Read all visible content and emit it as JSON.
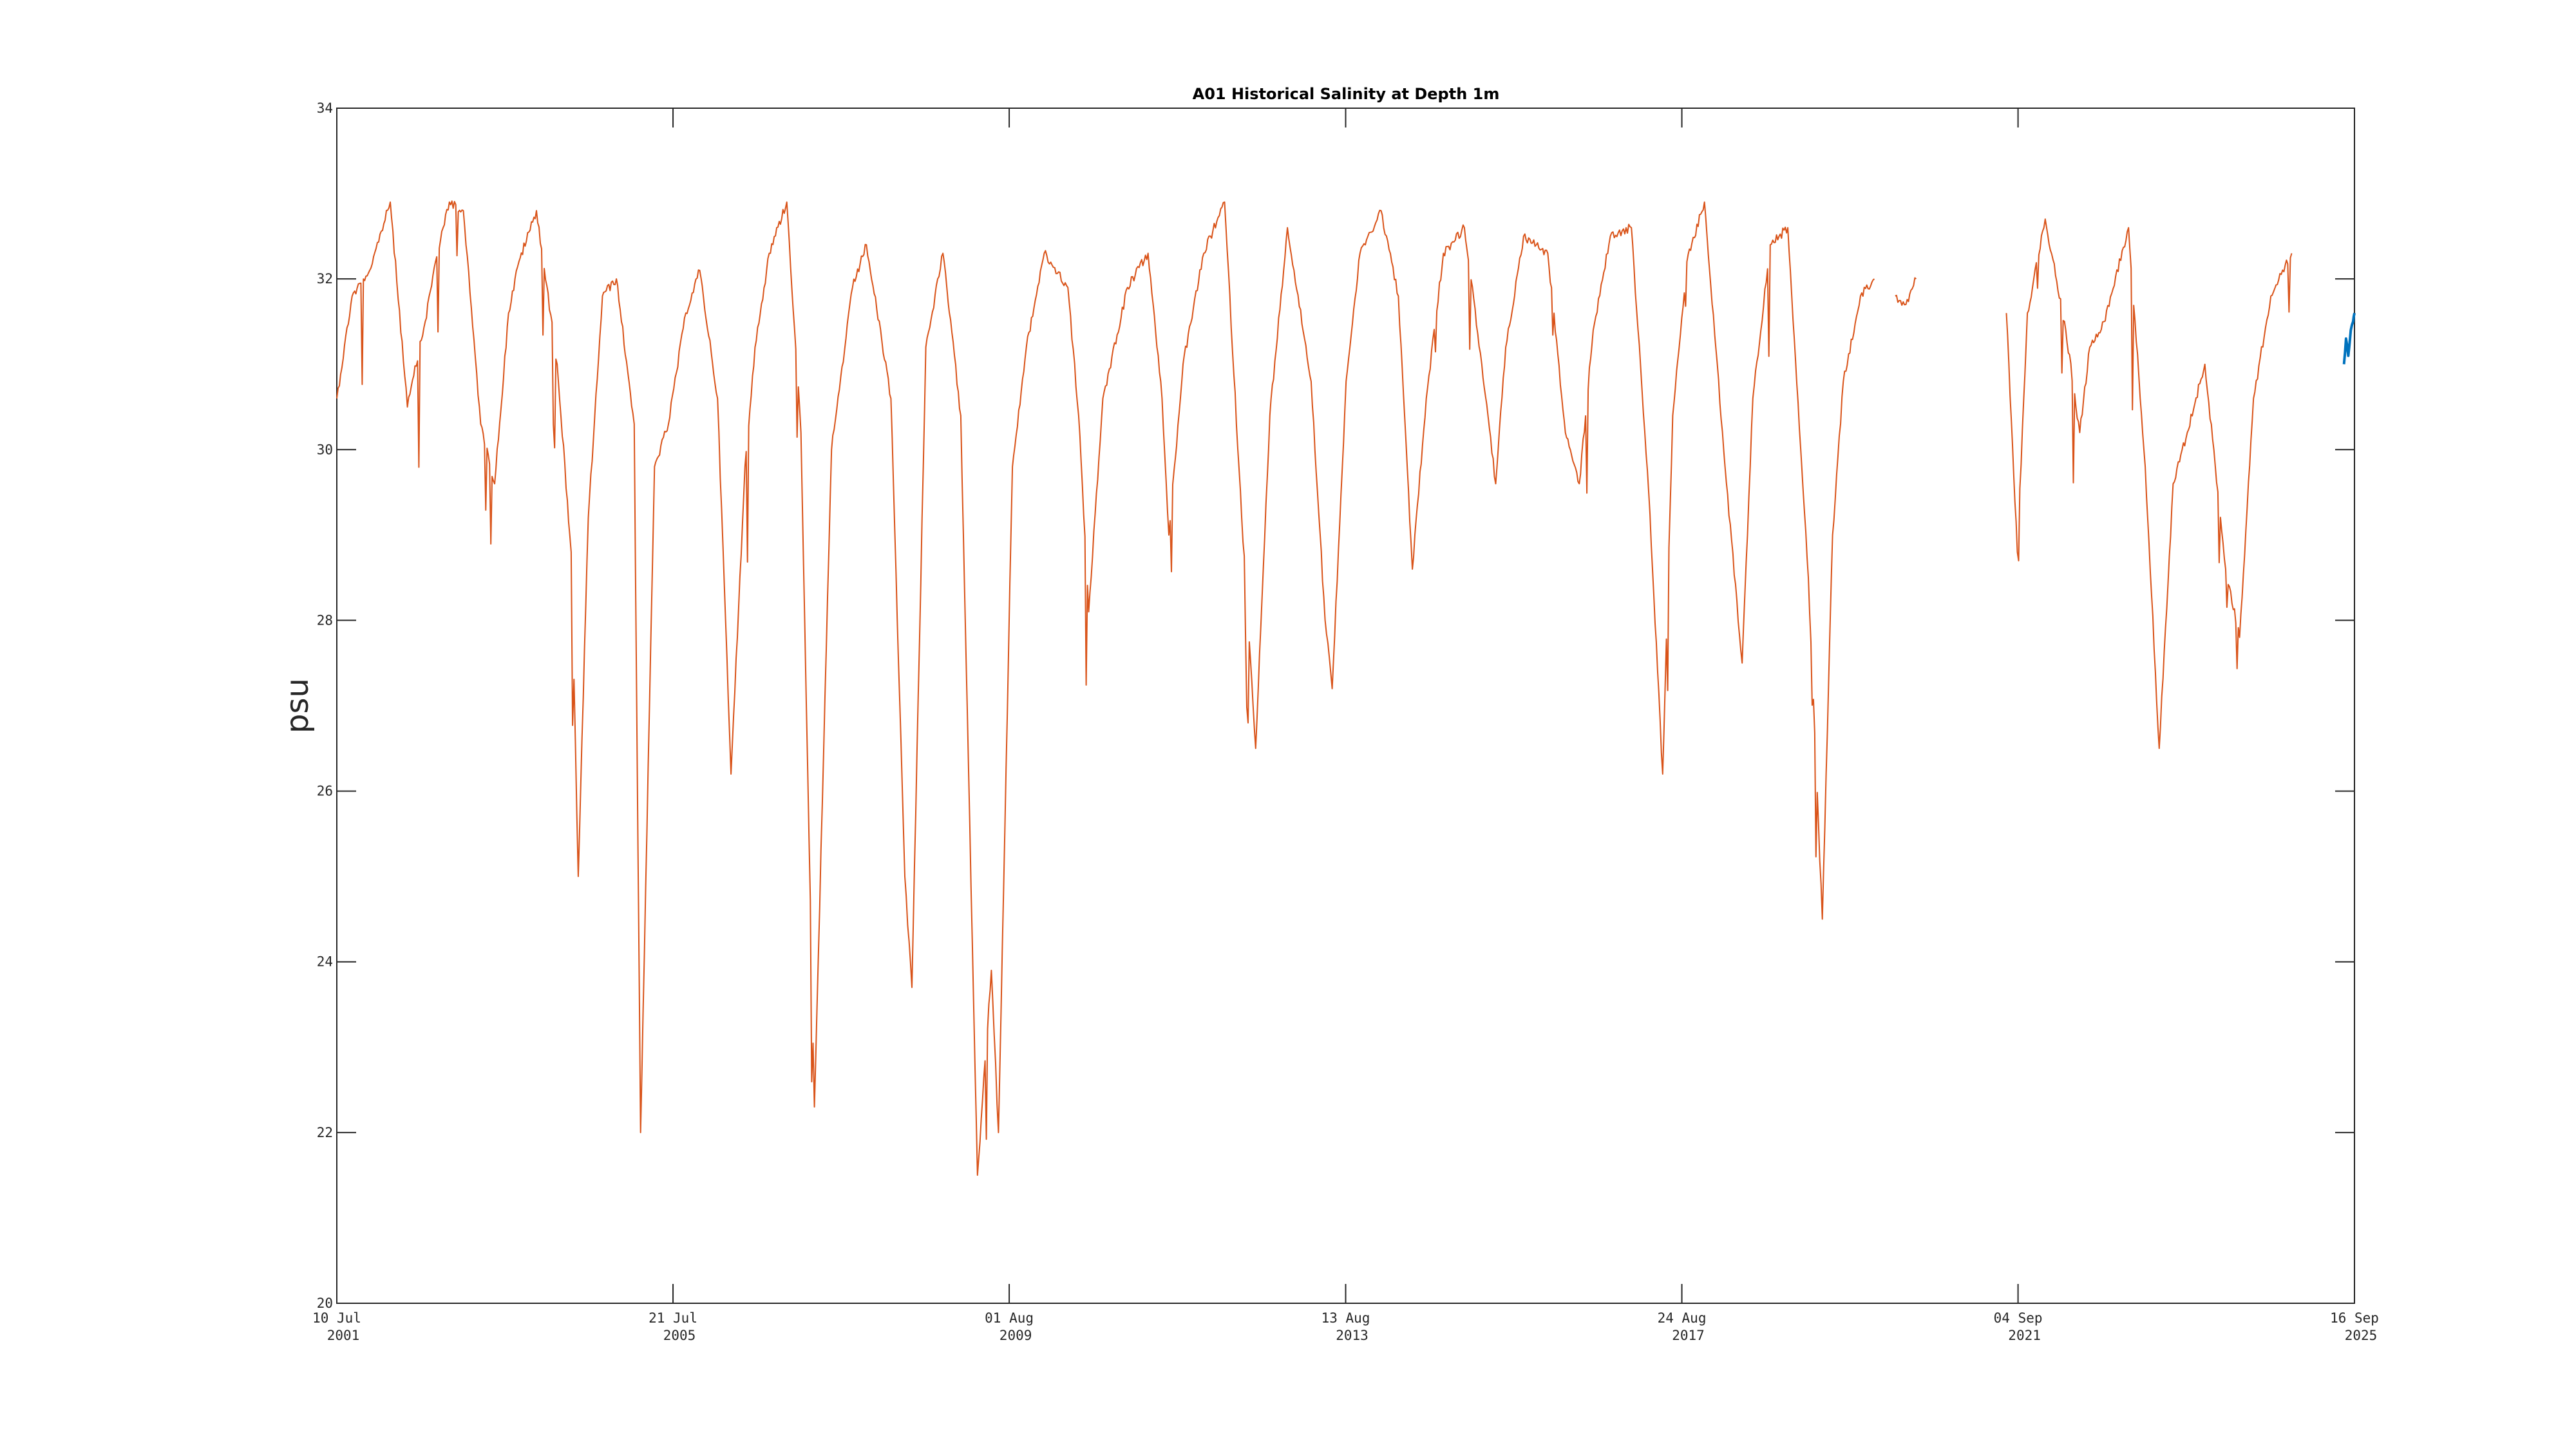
{
  "chart_data": {
    "type": "line",
    "title": "A01 Historical Salinity at Depth 1m",
    "xlabel": "",
    "ylabel": "psu",
    "xlim": [
      "2001-07-10",
      "2025-09-16"
    ],
    "ylim": [
      20,
      34
    ],
    "grid": false,
    "legend": "none",
    "y_ticks": [
      20,
      22,
      24,
      26,
      28,
      30,
      32,
      34
    ],
    "x_ticks": [
      {
        "date": "2001-07-10",
        "line1": "10 Jul",
        "line2": "2001"
      },
      {
        "date": "2005-07-21",
        "line1": "21 Jul",
        "line2": "2005"
      },
      {
        "date": "2009-08-01",
        "line1": "01 Aug",
        "line2": "2009"
      },
      {
        "date": "2013-08-13",
        "line1": "13 Aug",
        "line2": "2013"
      },
      {
        "date": "2017-08-24",
        "line1": "24 Aug",
        "line2": "2017"
      },
      {
        "date": "2021-09-04",
        "line1": "04 Sep",
        "line2": "2021"
      },
      {
        "date": "2025-09-16",
        "line1": "16 Sep",
        "line2": "2025"
      }
    ],
    "series": [
      {
        "color": "#D95319",
        "segments": [
          {
            "x": [
              "2001-07-10",
              "2001-09-15",
              "2001-12-01",
              "2002-03-01",
              "2002-05-15",
              "2002-08-01",
              "2002-09-15",
              "2002-11-15",
              "2003-01-15",
              "2003-04-01",
              "2003-06-01",
              "2003-08-01",
              "2003-09-15",
              "2003-12-01",
              "2004-03-01",
              "2004-05-01",
              "2004-06-01",
              "2004-07-15",
              "2004-09-15",
              "2004-11-15",
              "2005-02-01",
              "2005-03-01",
              "2005-05-01",
              "2005-07-01",
              "2005-09-15",
              "2005-11-15",
              "2006-02-01",
              "2006-04-01",
              "2006-06-01",
              "2006-07-15",
              "2006-09-15",
              "2006-12-01",
              "2007-02-01",
              "2007-04-01",
              "2007-06-15",
              "2007-09-15",
              "2007-11-15",
              "2008-03-01",
              "2008-05-01",
              "2008-06-01",
              "2008-08-01",
              "2008-10-15",
              "2009-01-01",
              "2009-03-15",
              "2009-05-15",
              "2009-06-15",
              "2009-08-15",
              "2009-10-15",
              "2010-01-01",
              "2010-04-15",
              "2010-06-01",
              "2010-07-15",
              "2010-09-15",
              "2011-01-01",
              "2011-04-01",
              "2011-06-01",
              "2011-07-01",
              "2011-09-01",
              "2011-12-01",
              "2012-03-01",
              "2012-05-15",
              "2012-07-15",
              "2012-09-15",
              "2012-12-01",
              "2013-03-15",
              "2013-05-15",
              "2013-06-15",
              "2013-08-15",
              "2013-10-15",
              "2014-01-15",
              "2014-04-01",
              "2014-06-01",
              "2014-08-01",
              "2014-10-15",
              "2015-01-15",
              "2015-04-01",
              "2015-06-01",
              "2015-07-15",
              "2015-10-01",
              "2016-01-15",
              "2016-04-01",
              "2016-06-01",
              "2016-08-01",
              "2016-10-15",
              "2017-01-15",
              "2017-04-01",
              "2017-06-01",
              "2017-07-15",
              "2017-09-15",
              "2017-12-01",
              "2018-03-01",
              "2018-05-15",
              "2018-07-01",
              "2018-09-15",
              "2018-12-01",
              "2019-03-01",
              "2019-05-01",
              "2019-06-15",
              "2019-08-01",
              "2019-10-15",
              "2019-12-15"
            ],
            "y": [
              30.6,
              31.8,
              32.1,
              32.9,
              30.5,
              31.5,
              32.2,
              32.9,
              32.8,
              30.3,
              29.6,
              31.6,
              32.2,
              32.8,
              31.0,
              28.8,
              25.0,
              29.2,
              31.8,
              32.0,
              30.3,
              22.0,
              29.8,
              30.3,
              31.6,
              32.1,
              30.6,
              26.2,
              29.8,
              31.2,
              32.3,
              32.9,
              30.2,
              22.3,
              30.0,
              31.9,
              32.4,
              30.6,
              25.0,
              23.7,
              31.2,
              32.3,
              30.4,
              21.5,
              23.9,
              22.0,
              29.8,
              31.2,
              32.3,
              31.9,
              30.4,
              28.1,
              30.6,
              31.9,
              32.3,
              30.6,
              29.0,
              31.0,
              32.3,
              32.9,
              29.2,
              26.5,
              30.4,
              32.6,
              30.8,
              28.0,
              27.2,
              30.8,
              32.3,
              32.8,
              31.8,
              28.6,
              30.6,
              32.3,
              32.6,
              31.0,
              29.6,
              31.2,
              32.5,
              32.3,
              30.2,
              29.6,
              31.4,
              32.5,
              32.6,
              29.5,
              26.2,
              30.4,
              32.2,
              32.9,
              29.8,
              27.5,
              30.6,
              32.4,
              32.6,
              28.5,
              24.5,
              29.0,
              30.8,
              31.8,
              32.0
            ]
          },
          {
            "x": [
              "2020-03-15",
              "2020-05-01",
              "2020-06-15"
            ],
            "y": [
              31.8,
              31.7,
              32.0
            ]
          },
          {
            "x": [
              "2021-07-15",
              "2021-09-01",
              "2021-10-15",
              "2022-01-01",
              "2022-04-01",
              "2022-06-01",
              "2022-07-15",
              "2022-09-15",
              "2023-01-01",
              "2023-03-15",
              "2023-05-15",
              "2023-07-15",
              "2023-09-15",
              "2023-12-01",
              "2024-03-01",
              "2024-05-01",
              "2024-07-01",
              "2024-09-15",
              "2024-12-15"
            ],
            "y": [
              31.6,
              28.8,
              31.6,
              32.7,
              31.4,
              30.2,
              31.2,
              31.5,
              32.6,
              29.8,
              26.5,
              29.6,
              30.2,
              31.0,
              28.6,
              27.8,
              30.6,
              31.8,
              32.3
            ]
          }
        ]
      },
      {
        "color": "#0072BD",
        "segments": [
          {
            "x": [
              "2025-08-01",
              "2025-08-10",
              "2025-08-20",
              "2025-08-31",
              "2025-09-10",
              "2025-09-16"
            ],
            "y": [
              31.0,
              31.3,
              31.1,
              31.4,
              31.5,
              31.6
            ]
          }
        ]
      }
    ]
  }
}
